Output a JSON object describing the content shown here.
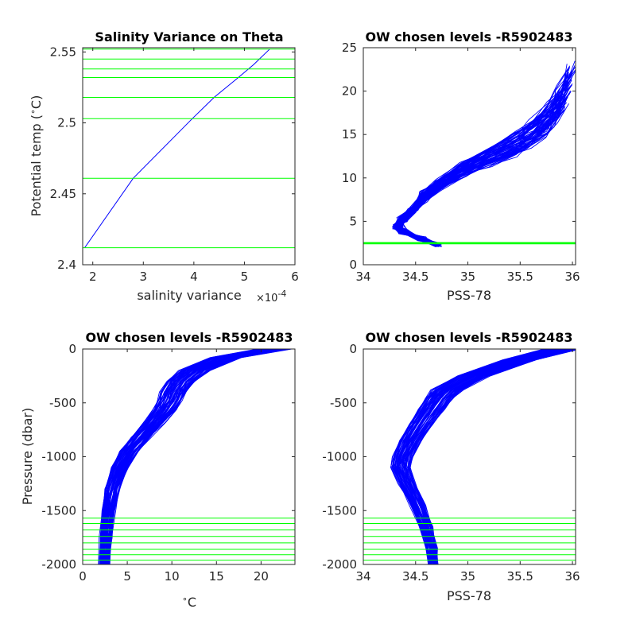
{
  "chart_data": [
    {
      "id": "tl",
      "type": "line",
      "title": "Salinity Variance on Theta",
      "xlabel": "salinity variance",
      "ylabel": "Potential temp (^{\\circ}C)",
      "x_multiplier": "×10",
      "x_multiplier_exp": "-4",
      "xlim": [
        1.8,
        6
      ],
      "ylim": [
        2.4,
        2.553
      ],
      "xticks": [
        2,
        3,
        4,
        5,
        6
      ],
      "xtick_labels": [
        "2",
        "3",
        "4",
        "5",
        "6"
      ],
      "yticks": [
        2.4,
        2.45,
        2.5,
        2.55
      ],
      "ytick_labels": [
        "2.4",
        "2.45",
        "2.5",
        "2.55"
      ],
      "series": [
        {
          "color": "#0000ff",
          "x": [
            1.84,
            2.8,
            3.97,
            4.4,
            4.88,
            5.18,
            5.5
          ],
          "y": [
            2.412,
            2.461,
            2.503,
            2.518,
            2.532,
            2.541,
            2.552
          ]
        }
      ],
      "hlines": {
        "color": "#00ff00",
        "y": [
          2.412,
          2.461,
          2.503,
          2.518,
          2.532,
          2.538,
          2.545,
          2.552
        ]
      },
      "grid": false
    },
    {
      "id": "tr",
      "type": "line",
      "title": "OW chosen levels -R5902483",
      "xlabel": "PSS-78",
      "ylabel": "",
      "xlim": [
        34,
        36.03
      ],
      "ylim": [
        0,
        25
      ],
      "xticks": [
        34,
        34.5,
        35,
        35.5,
        36
      ],
      "xtick_labels": [
        "34",
        "34.5",
        "35",
        "35.5",
        "36"
      ],
      "yticks": [
        0,
        5,
        10,
        15,
        20,
        25
      ],
      "ytick_labels": [
        "0",
        "5",
        "10",
        "15",
        "20",
        "25"
      ],
      "profile_color": "#0000ff",
      "profile_count": 70,
      "profile_shape": {
        "x": [
          34.7,
          34.55,
          34.38,
          34.33,
          34.37,
          34.48,
          34.58,
          34.72,
          34.95,
          35.2,
          35.45,
          35.6,
          35.75,
          35.85,
          35.95
        ],
        "y": [
          2.3,
          3.0,
          3.8,
          4.5,
          5.2,
          6.5,
          7.8,
          9.2,
          11.0,
          12.4,
          13.8,
          15.0,
          16.6,
          18.2,
          20.5
        ]
      },
      "hlines": {
        "color": "#00ff00",
        "y": [
          2.41,
          2.46,
          2.5,
          2.52,
          2.53,
          2.54,
          2.545,
          2.55
        ]
      },
      "grid": false
    },
    {
      "id": "bl",
      "type": "line",
      "title": "OW chosen levels -R5902483",
      "xlabel": "^{\\circ}C",
      "ylabel": "Pressure (dbar)",
      "xlim": [
        0,
        23.8
      ],
      "ylim": [
        -2000,
        0
      ],
      "xticks": [
        0,
        5,
        10,
        15,
        20
      ],
      "xtick_labels": [
        "0",
        "5",
        "10",
        "15",
        "20"
      ],
      "yticks": [
        0,
        -500,
        -1000,
        -1500,
        -2000
      ],
      "ytick_labels": [
        "0",
        "-500",
        "-1000",
        "-1500",
        "-2000"
      ],
      "profile_color": "#0000ff",
      "profile_count": 70,
      "profile_shape": {
        "x": [
          21.5,
          16.0,
          12.5,
          11.0,
          10.2,
          9.8,
          9.2,
          8.0,
          6.5,
          5.2,
          4.2,
          3.3,
          2.9,
          2.6,
          2.45
        ],
        "y": [
          0,
          -80,
          -200,
          -300,
          -400,
          -480,
          -560,
          -680,
          -820,
          -950,
          -1100,
          -1300,
          -1500,
          -1750,
          -2000
        ]
      },
      "hlines": {
        "color": "#00ff00",
        "y": [
          -1570,
          -1620,
          -1680,
          -1740,
          -1800,
          -1860,
          -1910,
          -1960
        ]
      },
      "grid": false
    },
    {
      "id": "br",
      "type": "line",
      "title": "OW chosen levels -R5902483",
      "xlabel": "PSS-78",
      "ylabel": "",
      "xlim": [
        34,
        36.03
      ],
      "ylim": [
        -2000,
        0
      ],
      "xticks": [
        34,
        34.5,
        35,
        35.5,
        36
      ],
      "xtick_labels": [
        "34",
        "34.5",
        "35",
        "35.5",
        "36"
      ],
      "yticks": [
        0,
        -500,
        -1000,
        -1500,
        -2000
      ],
      "ytick_labels": [
        "0",
        "-500",
        "-1000",
        "-1500",
        "-2000"
      ],
      "profile_color": "#0000ff",
      "profile_count": 70,
      "profile_shape": {
        "x": [
          35.9,
          35.5,
          35.05,
          34.8,
          34.72,
          34.65,
          34.55,
          34.45,
          34.38,
          34.36,
          34.42,
          34.52,
          34.6,
          34.65,
          34.67
        ],
        "y": [
          0,
          -100,
          -250,
          -380,
          -460,
          -560,
          -700,
          -850,
          -1000,
          -1100,
          -1250,
          -1450,
          -1650,
          -1850,
          -2000
        ]
      },
      "hlines": {
        "color": "#00ff00",
        "y": [
          -1570,
          -1620,
          -1680,
          -1740,
          -1800,
          -1860,
          -1910,
          -1960
        ]
      },
      "grid": false
    }
  ]
}
